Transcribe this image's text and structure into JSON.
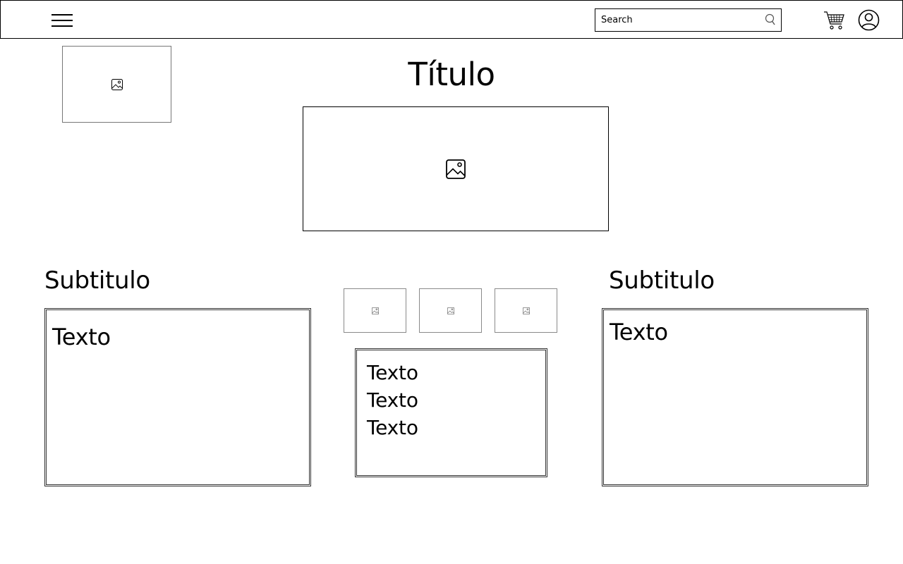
{
  "header": {
    "search": {
      "placeholder": "Search"
    },
    "icons": {
      "menu": "hamburger-menu-icon",
      "search": "search-icon",
      "cart": "shopping-cart-icon",
      "user": "user-account-icon"
    }
  },
  "main": {
    "title": "Título",
    "left": {
      "subtitle": "Subtitulo",
      "text": "Texto"
    },
    "center": {
      "texts": [
        "Texto",
        "Texto",
        "Texto"
      ]
    },
    "right": {
      "subtitle": "Subtitulo",
      "text": "Texto"
    }
  }
}
